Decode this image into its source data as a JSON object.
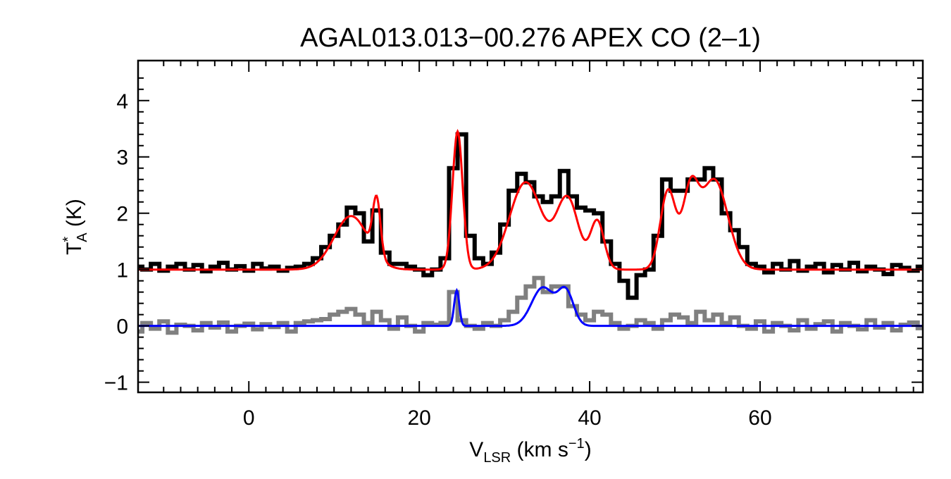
{
  "chart_data": {
    "type": "line",
    "title": "AGAL013.013−00.276  APEX CO (2–1)",
    "xlabel": {
      "main": "V",
      "sub": "LSR",
      "rest": " (km s",
      "sup": "−1",
      "end": ")"
    },
    "ylabel": {
      "main": "T",
      "sup": "*",
      "sub": "A",
      "rest": " (K)"
    },
    "xlim": [
      -13,
      79.1
    ],
    "ylim": [
      -1.18,
      4.71
    ],
    "xticks": [
      0,
      20,
      40,
      60
    ],
    "yticks": [
      -1,
      0,
      1,
      2,
      3,
      4
    ],
    "ytick_labels": [
      "−1",
      "0",
      "1",
      "2",
      "3",
      "4"
    ],
    "colors": {
      "observed_offset": "#000000",
      "fit_offset": "#ff0000",
      "observed": "#808080",
      "fit": "#0000ff"
    },
    "x": [
      -13,
      -12,
      -11,
      -10,
      -9,
      -8,
      -7,
      -6,
      -5,
      -4,
      -3,
      -2,
      -1,
      0,
      1,
      2,
      3,
      4,
      5,
      6,
      7,
      8,
      9,
      10,
      11,
      12,
      13,
      14,
      15,
      16,
      17,
      18,
      19,
      20,
      21,
      22,
      23,
      24,
      25,
      26,
      27,
      28,
      29,
      30,
      31,
      32,
      33,
      34,
      35,
      36,
      37,
      38,
      39,
      40,
      41,
      42,
      43,
      44,
      45,
      46,
      47,
      48,
      49,
      50,
      51,
      52,
      53,
      54,
      55,
      56,
      57,
      58,
      59,
      60,
      61,
      62,
      63,
      64,
      65,
      66,
      67,
      68,
      69,
      70,
      71,
      72,
      73,
      74,
      75,
      76,
      77,
      78,
      79
    ],
    "series": [
      {
        "values": [
          1.05,
          1.0,
          1.1,
          0.98,
          1.05,
          1.1,
          1.0,
          1.08,
          0.97,
          1.05,
          1.12,
          1.0,
          1.06,
          0.98,
          1.1,
          1.02,
          1.05,
          0.98,
          1.03,
          1.05,
          1.1,
          1.2,
          1.4,
          1.6,
          1.8,
          2.1,
          2.0,
          1.5,
          2.05,
          1.3,
          1.1,
          1.1,
          1.05,
          1.0,
          0.9,
          1.0,
          1.2,
          2.8,
          3.4,
          1.6,
          1.2,
          1.1,
          1.3,
          1.8,
          2.4,
          2.7,
          2.55,
          2.3,
          2.2,
          2.3,
          2.75,
          2.3,
          2.1,
          2.05,
          2.0,
          1.5,
          1.1,
          0.8,
          0.5,
          0.9,
          1.0,
          1.6,
          2.6,
          2.4,
          2.4,
          2.6,
          2.6,
          2.8,
          2.6,
          2.0,
          1.7,
          1.4,
          1.1,
          1.05,
          0.95,
          1.1,
          1.0,
          1.15,
          0.98,
          1.05,
          1.1,
          0.95,
          1.08,
          1.0,
          1.12,
          0.97,
          1.05,
          1.0,
          0.92,
          1.08,
          1.03,
          0.98,
          1.05
        ]
      },
      {
        "values": [
          -0.1,
          0.05,
          -0.05,
          0.08,
          -0.12,
          0.02,
          0.0,
          -0.08,
          0.05,
          -0.03,
          0.06,
          -0.1,
          0.0,
          0.04,
          -0.06,
          0.03,
          -0.02,
          0.05,
          -0.1,
          0.05,
          0.08,
          0.1,
          0.12,
          0.2,
          0.25,
          0.3,
          0.2,
          0.05,
          0.25,
          0.1,
          -0.05,
          0.15,
          0.0,
          -0.1,
          0.05,
          0.02,
          0.05,
          0.6,
          0.1,
          0.0,
          -0.05,
          0.05,
          0.0,
          0.1,
          0.25,
          0.5,
          0.7,
          0.85,
          0.6,
          0.7,
          0.7,
          0.35,
          0.2,
          0.1,
          0.25,
          0.2,
          0.05,
          -0.05,
          0.0,
          0.1,
          0.05,
          -0.05,
          0.1,
          0.2,
          0.15,
          0.05,
          0.25,
          0.1,
          0.2,
          0.05,
          0.15,
          0.0,
          -0.05,
          0.08,
          -0.1,
          0.05,
          0.0,
          -0.08,
          0.1,
          -0.05,
          0.03,
          0.08,
          -0.1,
          0.05,
          0.0,
          -0.06,
          0.1,
          -0.03,
          0.05,
          -0.08,
          0.02,
          0.06,
          -0.04
        ]
      }
    ],
    "fits": [
      {
        "offset": 1,
        "components": [
          {
            "amp": 0.95,
            "center": 12.0,
            "sigma": 2.0
          },
          {
            "amp": 1.0,
            "center": 15.0,
            "sigma": 0.45
          },
          {
            "amp": 2.45,
            "center": 24.5,
            "sigma": 0.6
          },
          {
            "amp": 1.55,
            "center": 32.5,
            "sigma": 1.9
          },
          {
            "amp": 1.25,
            "center": 37.4,
            "sigma": 1.3
          },
          {
            "amp": 0.85,
            "center": 40.9,
            "sigma": 0.8
          },
          {
            "amp": 1.4,
            "center": 49.2,
            "sigma": 0.9
          },
          {
            "amp": 1.25,
            "center": 51.8,
            "sigma": 0.9
          },
          {
            "amp": 1.6,
            "center": 54.6,
            "sigma": 1.6
          }
        ]
      },
      {
        "offset": 0,
        "components": [
          {
            "amp": 0.63,
            "center": 24.4,
            "sigma": 0.3
          },
          {
            "amp": 0.68,
            "center": 34.5,
            "sigma": 1.3
          },
          {
            "amp": 0.6,
            "center": 37.2,
            "sigma": 0.9
          }
        ]
      }
    ]
  }
}
